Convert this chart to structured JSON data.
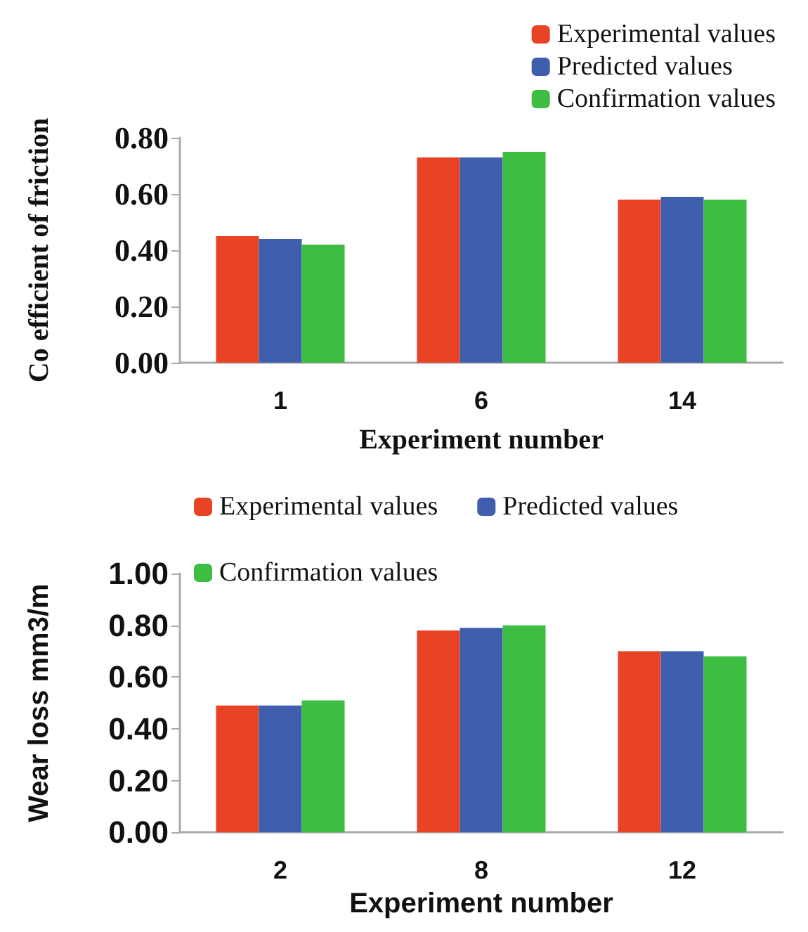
{
  "chart_data": [
    {
      "type": "bar",
      "xlabel": "Experiment number",
      "ylabel": "Co efficient of friction",
      "categories": [
        "1",
        "6",
        "14"
      ],
      "series": [
        {
          "name": "Experimental values",
          "color": "#e84325",
          "values": [
            0.45,
            0.73,
            0.58
          ]
        },
        {
          "name": "Predicted values",
          "color": "#3f5fae",
          "values": [
            0.44,
            0.73,
            0.59
          ]
        },
        {
          "name": "Confirmation values",
          "color": "#3dbd42",
          "values": [
            0.42,
            0.75,
            0.58
          ]
        }
      ],
      "ylim": [
        0,
        0.8
      ],
      "yticks": [
        {
          "value": 0,
          "label": "0.00"
        },
        {
          "value": 0.2,
          "label": "0.20"
        },
        {
          "value": 0.4,
          "label": "0.40"
        },
        {
          "value": 0.6,
          "label": "0.60"
        },
        {
          "value": 0.8,
          "label": "0.80"
        }
      ],
      "grid": false,
      "legend": "top right"
    },
    {
      "type": "bar",
      "xlabel": "Experiment number",
      "ylabel": "Wear loss mm3/m",
      "categories": [
        "2",
        "8",
        "12"
      ],
      "series": [
        {
          "name": "Experimental values",
          "color": "#e84325",
          "values": [
            0.49,
            0.78,
            0.7
          ]
        },
        {
          "name": "Predicted values",
          "color": "#3f5fae",
          "values": [
            0.49,
            0.79,
            0.7
          ]
        },
        {
          "name": "Confirmation values",
          "color": "#3dbd42",
          "values": [
            0.51,
            0.8,
            0.68
          ]
        }
      ],
      "ylim": [
        0,
        1
      ],
      "yticks": [
        {
          "value": 0,
          "label": "0.00"
        },
        {
          "value": 0.2,
          "label": "0.20"
        },
        {
          "value": 0.4,
          "label": "0.40"
        },
        {
          "value": 0.6,
          "label": "0.60"
        },
        {
          "value": 0.8,
          "label": "0.80"
        },
        {
          "value": 1,
          "label": "1.00"
        }
      ],
      "grid": false,
      "legend": "top"
    }
  ]
}
